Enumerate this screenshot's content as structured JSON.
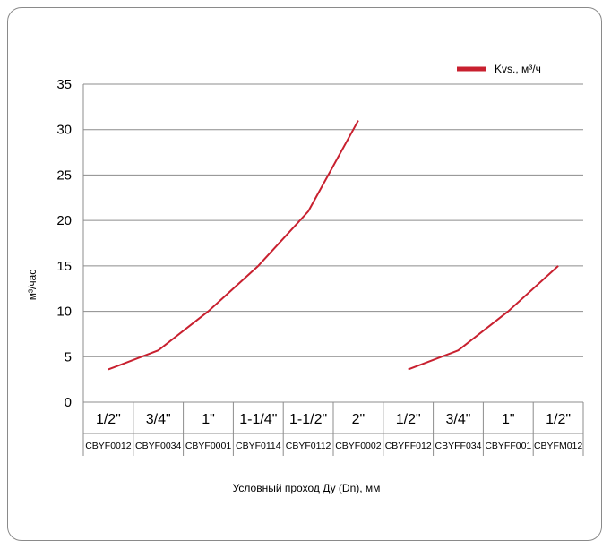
{
  "chart_data": {
    "type": "line",
    "title": "",
    "xlabel": "Условный проход Ду (Dn), мм",
    "ylabel": "м³/час",
    "ylim": [
      0,
      35
    ],
    "yticks": [
      0,
      5,
      10,
      15,
      20,
      25,
      30,
      35
    ],
    "grid": true,
    "legend_position": "top-right",
    "categories": [
      {
        "size": "1/2\"",
        "code": "CBYF0012"
      },
      {
        "size": "3/4\"",
        "code": "CBYF0034"
      },
      {
        "size": "1\"",
        "code": "CBYF0001"
      },
      {
        "size": "1-1/4\"",
        "code": "CBYF0114"
      },
      {
        "size": "1-1/2\"",
        "code": "CBYF0112"
      },
      {
        "size": "2\"",
        "code": "CBYF0002"
      },
      {
        "size": "1/2\"",
        "code": "CBYFF012"
      },
      {
        "size": "3/4\"",
        "code": "CBYFF034"
      },
      {
        "size": "1\"",
        "code": "CBYFF001"
      },
      {
        "size": "1/2\"",
        "code": "CBYFM012"
      }
    ],
    "series": [
      {
        "name": "Kvs., м³/ч",
        "color": "#c8202f",
        "segments": [
          {
            "category_index": [
              0,
              1,
              2,
              3,
              4,
              5
            ],
            "values": [
              3.6,
              5.7,
              10,
              15,
              21,
              31
            ]
          },
          {
            "category_index": [
              6,
              7,
              8,
              9
            ],
            "values": [
              3.6,
              5.7,
              10,
              15
            ]
          }
        ]
      }
    ]
  }
}
